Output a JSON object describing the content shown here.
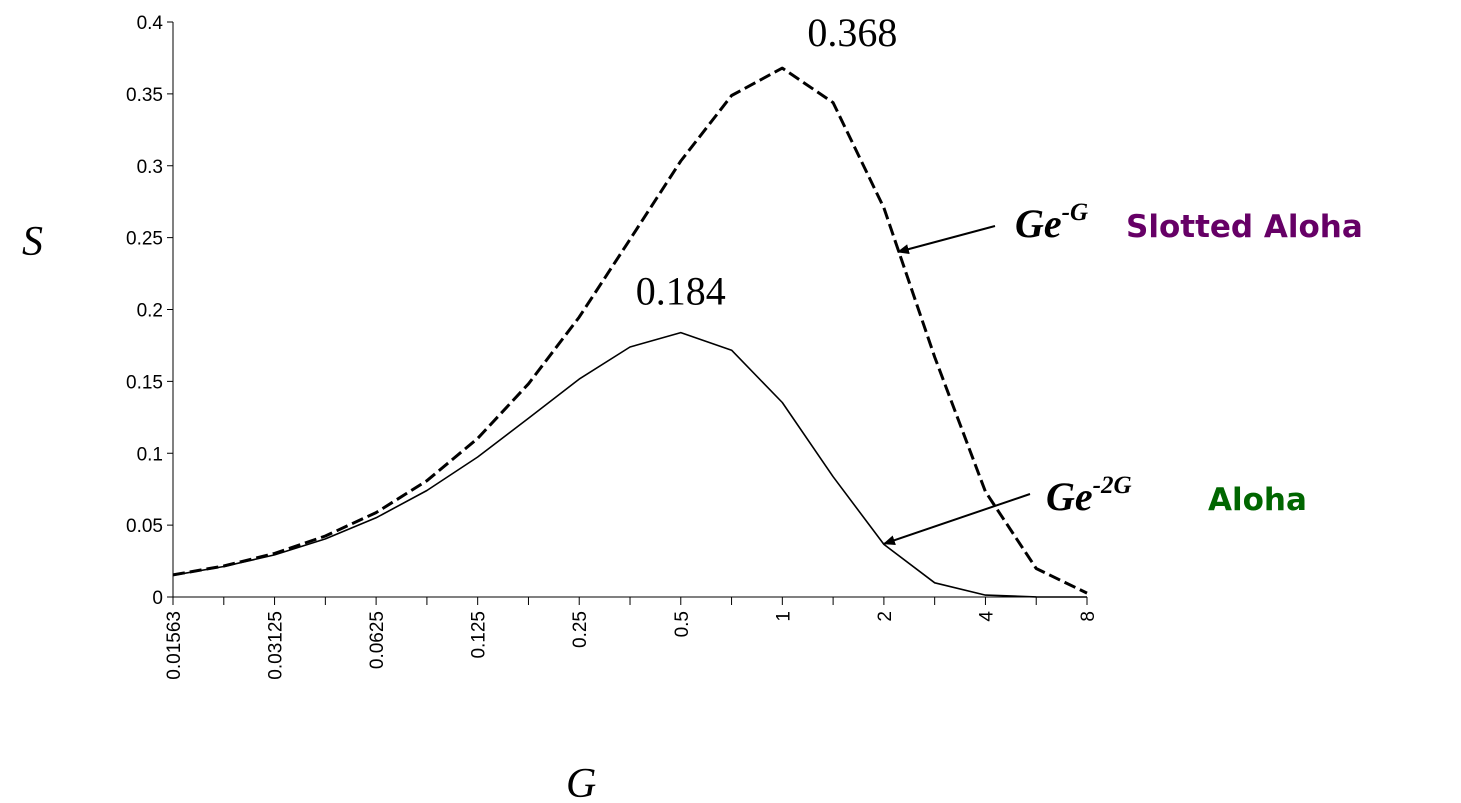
{
  "chart_data": {
    "type": "line",
    "title": "",
    "xlabel": "G",
    "ylabel": "S",
    "x_scale": "log2",
    "x_ticks": [
      0.015625,
      0.03125,
      0.0625,
      0.125,
      0.25,
      0.5,
      1,
      2,
      4,
      8
    ],
    "x_tick_labels": [
      "0.01563",
      "0.03125",
      "0.0625",
      "0.125",
      "0.25",
      "0.5",
      "1",
      "2",
      "4",
      "8"
    ],
    "ylim": [
      0,
      0.4
    ],
    "y_ticks": [
      0,
      0.05,
      0.1,
      0.15,
      0.2,
      0.25,
      0.3,
      0.35,
      0.4
    ],
    "y_tick_labels": [
      "0",
      "0.05",
      "0.1",
      "0.15",
      "0.2",
      "0.25",
      "0.3",
      "0.35",
      "0.4"
    ],
    "grid": false,
    "x": [
      0.015625,
      0.0221,
      0.03125,
      0.0442,
      0.0625,
      0.0884,
      0.125,
      0.1768,
      0.25,
      0.3536,
      0.5,
      0.7071,
      1,
      1.4142,
      2,
      2.8284,
      4,
      5.6569,
      8
    ],
    "series": [
      {
        "name": "Slotted Aloha",
        "formula": "Ge-G",
        "style": "dashed",
        "color": "#000000",
        "values": [
          0.0154,
          0.0216,
          0.0303,
          0.0424,
          0.0587,
          0.0809,
          0.1103,
          0.1483,
          0.1947,
          0.2488,
          0.3033,
          0.3489,
          0.3679,
          0.3439,
          0.2707,
          0.1669,
          0.0733,
          0.0198,
          0.0027
        ]
      },
      {
        "name": "Aloha",
        "formula": "Ge-2G",
        "style": "solid",
        "color": "#000000",
        "values": [
          0.0151,
          0.0212,
          0.0293,
          0.0404,
          0.0551,
          0.0741,
          0.0974,
          0.1243,
          0.1516,
          0.1739,
          0.1839,
          0.1717,
          0.1353,
          0.0837,
          0.0366,
          0.0099,
          0.0013,
          0.0001,
          0.0
        ]
      }
    ],
    "annotations": [
      {
        "text": "0.368",
        "x": 1,
        "y": 0.368
      },
      {
        "text": "0.184",
        "x": 0.5,
        "y": 0.184
      }
    ],
    "legend": [
      {
        "formula_base": "Ge",
        "formula_exp": "-G",
        "name": "Slotted Aloha",
        "color": "#660066",
        "arrow_to": {
          "x": 2.2,
          "y": 0.24
        }
      },
      {
        "formula_base": "Ge",
        "formula_exp": "-2G",
        "name": "Aloha",
        "color": "#006600",
        "arrow_to": {
          "x": 2,
          "y": 0.037
        }
      }
    ]
  }
}
